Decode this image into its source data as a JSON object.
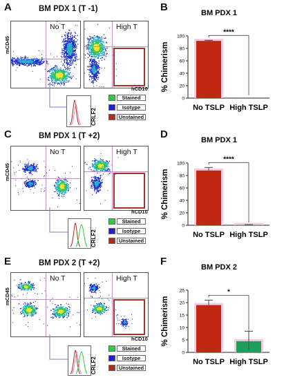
{
  "panels": {
    "A": {
      "letter": "A",
      "title": "BM PDX 1 (T -1)",
      "cond_left": "No T",
      "cond_right": "High T",
      "ylabel": "mCD45",
      "xlabel": "hCD10",
      "hist_label": "CRLF2"
    },
    "C": {
      "letter": "C",
      "title": "BM PDX 1 (T +2)",
      "cond_left": "No T",
      "cond_right": "High T",
      "ylabel": "mCD45",
      "xlabel": "hCD10",
      "hist_label": "CRLF2"
    },
    "E": {
      "letter": "E",
      "title": "BM PDX 2 (T +2)",
      "cond_left": "No T",
      "cond_right": "High T",
      "ylabel": "mCD45",
      "xlabel": "hCD10",
      "hist_label": "CRLF2"
    }
  },
  "legend": [
    {
      "label": "Stained",
      "color": "#2ecc40"
    },
    {
      "label": "Isotype",
      "color": "#1f1fcc"
    },
    {
      "label": "Unstained",
      "color": "#b22b1d"
    }
  ],
  "colors": {
    "red_bar": "#c0280f",
    "green_bar": "#1f9d5a",
    "pink_bg": "#f2b8d8",
    "gate": "#a83228"
  },
  "chart_data": [
    {
      "letter": "B",
      "type": "bar",
      "title": "BM PDX 1",
      "ylabel": "% Chimerism",
      "categories": [
        "No TSLP",
        "High TSLP"
      ],
      "values": [
        92,
        0
      ],
      "errors": [
        1,
        0
      ],
      "ylim": [
        0,
        100
      ],
      "yticks": [
        0,
        20,
        40,
        60,
        80,
        100
      ],
      "significance": "****"
    },
    {
      "letter": "D",
      "type": "bar",
      "title": "BM PDX 1",
      "ylabel": "% Chimerism",
      "categories": [
        "No TSLP",
        "High TSLP"
      ],
      "values": [
        88,
        0.5
      ],
      "errors": [
        5,
        0.5
      ],
      "ylim": [
        0,
        100
      ],
      "yticks": [
        0,
        20,
        40,
        60,
        80,
        100
      ],
      "significance": "****"
    },
    {
      "letter": "F",
      "type": "bar",
      "title": "BM PDX 2",
      "ylabel": "% Chimerism",
      "categories": [
        "No TSLP",
        "High TSLP"
      ],
      "values": [
        19,
        4.5
      ],
      "errors": [
        2,
        4
      ],
      "ylim": [
        0,
        25
      ],
      "yticks": [
        0,
        5,
        10,
        15,
        20,
        25
      ],
      "significance": "*"
    }
  ]
}
